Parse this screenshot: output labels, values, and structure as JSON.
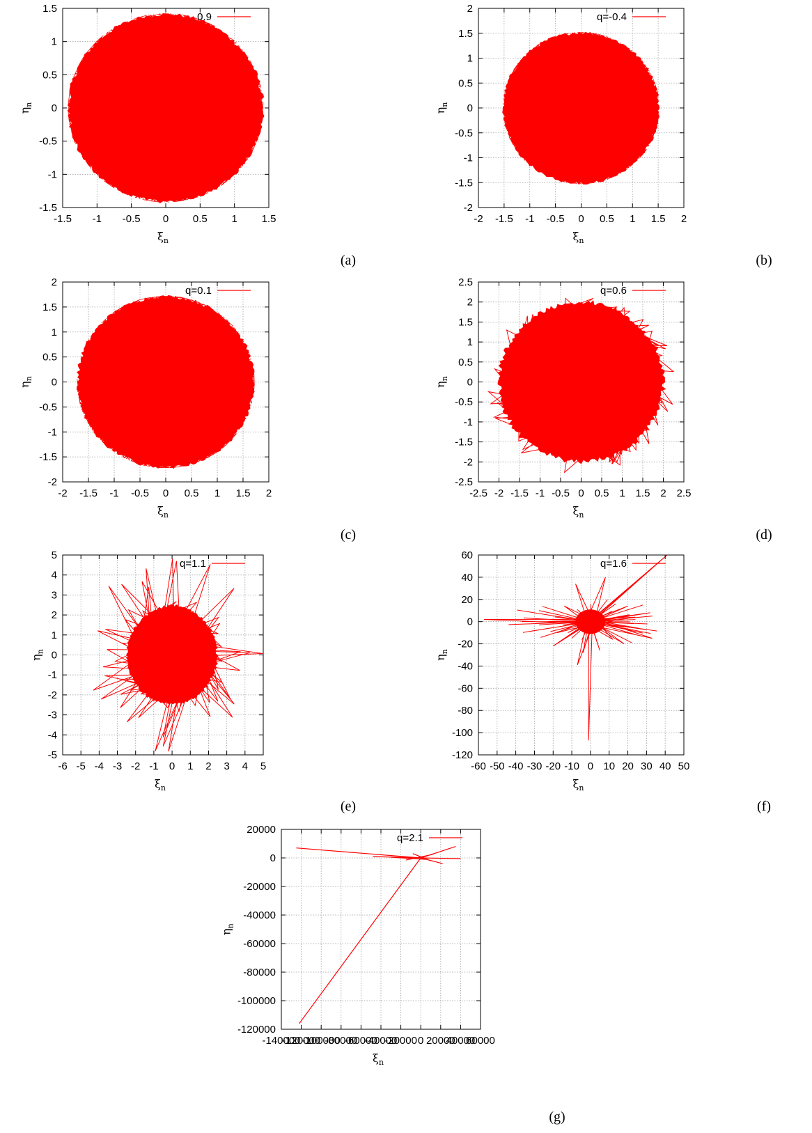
{
  "figure": {
    "series_color": "#ff0000"
  },
  "chart_data": [
    {
      "panel": "(a)",
      "type": "line",
      "legend": "0.9",
      "xlabel": "ξ",
      "xlabel_sub": "n",
      "ylabel": "η",
      "ylabel_sub": "n",
      "xlim": [
        -1.5,
        1.5
      ],
      "ylim": [
        -1.5,
        1.5
      ],
      "xticks": [
        -1.5,
        -1,
        -0.5,
        0,
        0.5,
        1,
        1.5
      ],
      "xtick_labels": [
        "-1.5",
        "-1",
        "-0.5",
        "0",
        "0.5",
        "1",
        "1.5"
      ],
      "yticks": [
        -1.5,
        -1,
        -0.5,
        0,
        0.5,
        1,
        1.5
      ],
      "ytick_labels": [
        "-1.5",
        "-1",
        "-0.5",
        "0",
        "0.5",
        "1",
        "1.5"
      ],
      "grid": true,
      "legend_position": "top-right",
      "shape": {
        "kind": "disk",
        "radius": 1.42,
        "outliers": 0
      },
      "color": "#ff0000"
    },
    {
      "panel": "(b)",
      "type": "line",
      "legend": "q=-0.4",
      "xlabel": "ξ",
      "xlabel_sub": "n",
      "ylabel": "η",
      "ylabel_sub": "n",
      "xlim": [
        -2,
        2
      ],
      "ylim": [
        -2,
        2
      ],
      "xticks": [
        -2,
        -1.5,
        -1,
        -0.5,
        0,
        0.5,
        1,
        1.5,
        2
      ],
      "xtick_labels": [
        "-2",
        "-1.5",
        "-1",
        "-0.5",
        "0",
        "0.5",
        "1",
        "1.5",
        "2"
      ],
      "yticks": [
        -2,
        -1.5,
        -1,
        -0.5,
        0,
        0.5,
        1,
        1.5,
        2
      ],
      "ytick_labels": [
        "-2",
        "-1.5",
        "-1",
        "-0.5",
        "0",
        "0.5",
        "1",
        "1.5",
        "2"
      ],
      "grid": true,
      "legend_position": "top-right",
      "shape": {
        "kind": "disk",
        "radius": 1.52,
        "outliers": 0
      },
      "color": "#ff0000"
    },
    {
      "panel": "(c)",
      "type": "line",
      "legend": "q=0.1",
      "xlabel": "ξ",
      "xlabel_sub": "n",
      "ylabel": "η",
      "ylabel_sub": "n",
      "xlim": [
        -2,
        2
      ],
      "ylim": [
        -2,
        2
      ],
      "xticks": [
        -2,
        -1.5,
        -1,
        -0.5,
        0,
        0.5,
        1,
        1.5,
        2
      ],
      "xtick_labels": [
        "-2",
        "-1.5",
        "-1",
        "-0.5",
        "0",
        "0.5",
        "1",
        "1.5",
        "2"
      ],
      "yticks": [
        -2,
        -1.5,
        -1,
        -0.5,
        0,
        0.5,
        1,
        1.5,
        2
      ],
      "ytick_labels": [
        "-2",
        "-1.5",
        "-1",
        "-0.5",
        "0",
        "0.5",
        "1",
        "1.5",
        "2"
      ],
      "grid": true,
      "legend_position": "top-right",
      "shape": {
        "kind": "disk",
        "radius": 1.72,
        "outliers": 0
      },
      "color": "#ff0000"
    },
    {
      "panel": "(d)",
      "type": "line",
      "legend": "q=0.6",
      "xlabel": "ξ",
      "xlabel_sub": "n",
      "ylabel": "η",
      "ylabel_sub": "n",
      "xlim": [
        -2.5,
        2.5
      ],
      "ylim": [
        -2.5,
        2.5
      ],
      "xticks": [
        -2.5,
        -2,
        -1.5,
        -1,
        -0.5,
        0,
        0.5,
        1,
        1.5,
        2,
        2.5
      ],
      "xtick_labels": [
        "-2.5",
        "-2",
        "-1.5",
        "-1",
        "-0.5",
        "0",
        "0.5",
        "1",
        "1.5",
        "2",
        "2.5"
      ],
      "yticks": [
        -2.5,
        -2,
        -1.5,
        -1,
        -0.5,
        0,
        0.5,
        1,
        1.5,
        2,
        2.5
      ],
      "ytick_labels": [
        "-2.5",
        "-2",
        "-1.5",
        "-1",
        "-0.5",
        "0",
        "0.5",
        "1",
        "1.5",
        "2",
        "2.5"
      ],
      "grid": true,
      "legend_position": "top-right",
      "shape": {
        "kind": "disk",
        "radius": 1.95,
        "outliers": 45,
        "outlier_max": 2.3
      },
      "color": "#ff0000"
    },
    {
      "panel": "(e)",
      "type": "line",
      "legend": "q=1.1",
      "xlabel": "ξ",
      "xlabel_sub": "n",
      "ylabel": "η",
      "ylabel_sub": "n",
      "xlim": [
        -6,
        5
      ],
      "ylim": [
        -5,
        5
      ],
      "xticks": [
        -6,
        -5,
        -4,
        -3,
        -2,
        -1,
        0,
        1,
        2,
        3,
        4,
        5
      ],
      "xtick_labels": [
        "-6",
        "-5",
        "-4",
        "-3",
        "-2",
        "-1",
        "0",
        "1",
        "2",
        "3",
        "4",
        "5"
      ],
      "yticks": [
        -5,
        -4,
        -3,
        -2,
        -1,
        0,
        1,
        2,
        3,
        4,
        5
      ],
      "ytick_labels": [
        "-5",
        "-4",
        "-3",
        "-2",
        "-1",
        "0",
        "1",
        "2",
        "3",
        "4",
        "5"
      ],
      "grid": true,
      "legend_position": "top-right",
      "shape": {
        "kind": "disk",
        "radius": 2.4,
        "outliers": 55,
        "outlier_max": 5.0
      },
      "color": "#ff0000"
    },
    {
      "panel": "(f)",
      "type": "line",
      "legend": "q=1.6",
      "xlabel": "ξ",
      "xlabel_sub": "n",
      "ylabel": "η",
      "ylabel_sub": "n",
      "xlim": [
        -60,
        50
      ],
      "ylim": [
        -120,
        60
      ],
      "xticks": [
        -60,
        -50,
        -40,
        -30,
        -20,
        -10,
        0,
        10,
        20,
        30,
        40,
        50
      ],
      "xtick_labels": [
        "-60",
        "-50",
        "-40",
        "-30",
        "-20",
        "-10",
        "0",
        "10",
        "20",
        "30",
        "40",
        "50"
      ],
      "yticks": [
        -120,
        -100,
        -80,
        -60,
        -40,
        -20,
        0,
        20,
        40,
        60
      ],
      "ytick_labels": [
        "-120",
        "-100",
        "-80",
        "-60",
        "-40",
        "-20",
        "0",
        "20",
        "40",
        "60"
      ],
      "grid": true,
      "legend_position": "top-right",
      "shape": {
        "kind": "spikes",
        "core_radius": 5,
        "spikes": [
          [
            -57,
            2
          ],
          [
            41,
            60
          ],
          [
            37,
            54
          ],
          [
            -1,
            -107
          ],
          [
            33,
            -15
          ],
          [
            32,
            8
          ],
          [
            -20,
            -22
          ],
          [
            -7,
            -39
          ],
          [
            -8,
            34
          ],
          [
            8,
            40
          ],
          [
            20,
            14
          ],
          [
            26,
            -6
          ],
          [
            -18,
            -10
          ],
          [
            12,
            -16
          ],
          [
            -14,
            14
          ],
          [
            5,
            -26
          ],
          [
            -22,
            2
          ],
          [
            18,
            -20
          ],
          [
            -4,
            -28
          ],
          [
            24,
            4
          ]
        ]
      },
      "color": "#ff0000"
    },
    {
      "panel": "(g)",
      "type": "line",
      "legend": "q=2.1",
      "xlabel": "ξ",
      "xlabel_sub": "n",
      "ylabel": "η",
      "ylabel_sub": "n",
      "xlim": [
        -140000,
        60000
      ],
      "ylim": [
        -120000,
        20000
      ],
      "xticks": [
        -140000,
        -120000,
        -100000,
        -80000,
        -60000,
        -40000,
        -20000,
        0,
        20000,
        40000,
        60000
      ],
      "xtick_labels": [
        "-140000",
        "-120000",
        "-100000",
        "-80000",
        "-60000",
        "-40000",
        "-20000",
        "0",
        "20000",
        "40000",
        "60000"
      ],
      "yticks": [
        -120000,
        -100000,
        -80000,
        -60000,
        -40000,
        -20000,
        0,
        20000
      ],
      "ytick_labels": [
        "-120000",
        "-100000",
        "-80000",
        "-60000",
        "-40000",
        "-20000",
        "0",
        "20000"
      ],
      "grid": true,
      "legend_position": "top-right",
      "shape": {
        "kind": "segments",
        "segments": [
          [
            [
              -122000,
              -116000
            ],
            [
              0,
              0
            ]
          ],
          [
            [
              -125000,
              7000
            ],
            [
              0,
              0
            ]
          ],
          [
            [
              0,
              0
            ],
            [
              40000,
              -500
            ]
          ],
          [
            [
              0,
              0
            ],
            [
              35000,
              8000
            ]
          ],
          [
            [
              0,
              0
            ],
            [
              22000,
              -4000
            ]
          ],
          [
            [
              -48000,
              1000
            ],
            [
              0,
              0
            ]
          ],
          [
            [
              -8000,
              3000
            ],
            [
              10000,
              -2000
            ]
          ],
          [
            [
              -15000,
              -1500
            ],
            [
              12000,
              2500
            ]
          ],
          [
            [
              -30000,
              500
            ],
            [
              5000,
              -1000
            ]
          ]
        ]
      },
      "color": "#ff0000"
    }
  ]
}
